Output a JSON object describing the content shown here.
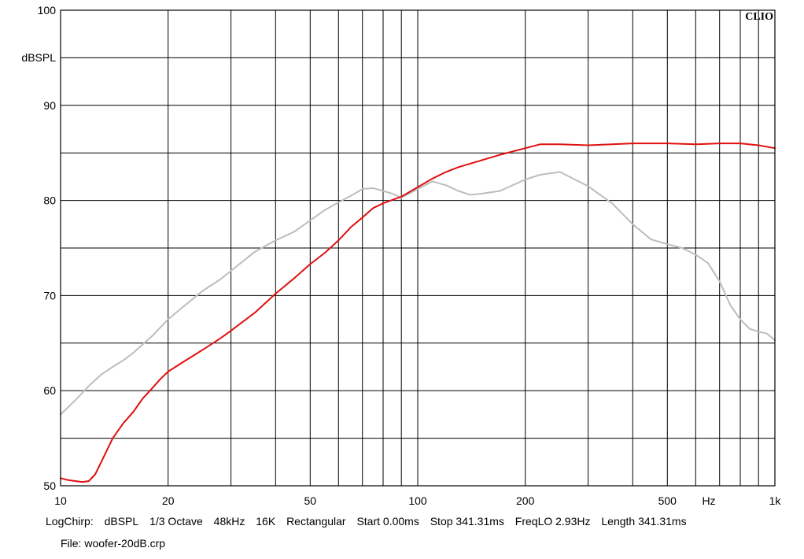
{
  "brand": "CLIO",
  "measurement": {
    "items": [
      "LogChirp:",
      "dBSPL",
      "1/3 Octave",
      "48kHz",
      "16K",
      "Rectangular",
      "Start 0.00ms",
      "Stop 341.31ms",
      "FreqLO 2.93Hz",
      "Length 341.31ms"
    ],
    "file_label": "File:",
    "file_name": "woofer-20dB.crp"
  },
  "chart_data": {
    "type": "line",
    "xscale": "log",
    "xlim": [
      10,
      1000
    ],
    "ylim": [
      50,
      100
    ],
    "grid": true,
    "xlabel": "Hz",
    "ylabel": "dBSPL",
    "x_tick_labels": [
      {
        "value": 10,
        "label": "10"
      },
      {
        "value": 20,
        "label": "20"
      },
      {
        "value": 50,
        "label": "50"
      },
      {
        "value": 100,
        "label": "100"
      },
      {
        "value": 200,
        "label": "200"
      },
      {
        "value": 500,
        "label": "500"
      },
      {
        "value": 1000,
        "label": "1k"
      }
    ],
    "y_tick_labels": [
      {
        "value": 100,
        "label": "100"
      },
      {
        "value": 90,
        "label": "90"
      },
      {
        "value": 80,
        "label": "80"
      },
      {
        "value": 70,
        "label": "70"
      },
      {
        "value": 60,
        "label": "60"
      },
      {
        "value": 50,
        "label": "50"
      }
    ],
    "x_gridlines": [
      10,
      20,
      30,
      40,
      50,
      60,
      70,
      80,
      90,
      100,
      200,
      300,
      400,
      500,
      600,
      700,
      800,
      900,
      1000
    ],
    "y_gridlines": [
      50,
      55,
      60,
      65,
      70,
      75,
      80,
      85,
      90,
      95,
      100
    ],
    "series": [
      {
        "color": "#e01010",
        "x": [
          10,
          10.5,
          11,
          11.5,
          12,
          12.5,
          13,
          14,
          15,
          16,
          17,
          18,
          19,
          20,
          22,
          25,
          28,
          30,
          35,
          40,
          45,
          50,
          55,
          60,
          65,
          70,
          75,
          80,
          90,
          100,
          110,
          120,
          130,
          150,
          170,
          200,
          220,
          250,
          300,
          350,
          400,
          500,
          600,
          700,
          800,
          900,
          1000
        ],
        "y": [
          50.8,
          50.6,
          50.5,
          50.4,
          50.5,
          51.2,
          52.5,
          55.0,
          56.6,
          57.8,
          59.2,
          60.2,
          61.2,
          62.0,
          63.0,
          64.3,
          65.5,
          66.3,
          68.2,
          70.2,
          71.8,
          73.3,
          74.5,
          75.8,
          77.2,
          78.2,
          79.2,
          79.7,
          80.4,
          81.4,
          82.3,
          83.0,
          83.5,
          84.2,
          84.8,
          85.5,
          85.9,
          85.9,
          85.8,
          85.9,
          86.0,
          86.0,
          85.9,
          86.0,
          86.0,
          85.8,
          85.5
        ]
      },
      {
        "color": "#bdbdbd",
        "x": [
          10,
          11,
          12,
          13,
          14,
          15,
          16,
          18,
          20,
          22,
          25,
          28,
          30,
          35,
          40,
          45,
          50,
          55,
          60,
          65,
          70,
          75,
          80,
          85,
          90,
          100,
          110,
          120,
          130,
          140,
          150,
          170,
          200,
          220,
          250,
          300,
          350,
          400,
          450,
          500,
          550,
          600,
          650,
          700,
          750,
          800,
          850,
          900,
          950,
          1000
        ],
        "y": [
          57.5,
          59.0,
          60.5,
          61.7,
          62.5,
          63.2,
          64.0,
          65.7,
          67.5,
          68.8,
          70.5,
          71.7,
          72.6,
          74.6,
          75.8,
          76.7,
          77.9,
          79.0,
          79.8,
          80.5,
          81.2,
          81.3,
          81.0,
          80.7,
          80.3,
          81.2,
          82.0,
          81.6,
          81.0,
          80.6,
          80.7,
          81.0,
          82.2,
          82.7,
          83.0,
          81.5,
          79.7,
          77.5,
          75.9,
          75.4,
          75.0,
          74.3,
          73.4,
          71.5,
          69.0,
          67.5,
          66.5,
          66.2,
          66.0,
          65.3
        ]
      }
    ]
  }
}
